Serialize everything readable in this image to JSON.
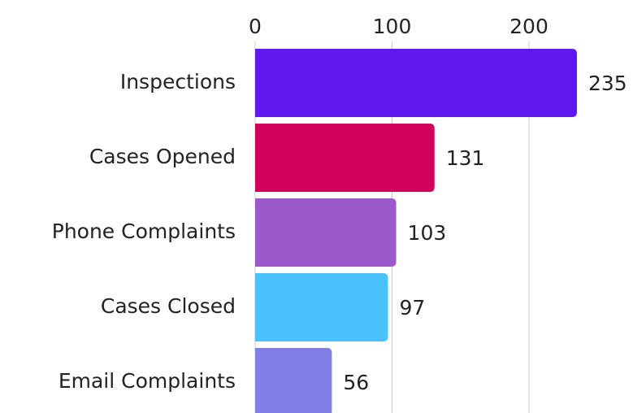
{
  "chart_data": {
    "type": "bar",
    "orientation": "horizontal",
    "categories": [
      "Inspections",
      "Cases Opened",
      "Phone Complaints",
      "Cases Closed",
      "Email Complaints"
    ],
    "values": [
      235,
      131,
      103,
      97,
      56
    ],
    "colors": [
      "#5f19ef",
      "#d1005a",
      "#9b59cc",
      "#4ac3fd",
      "#7f7fe6"
    ],
    "xlim": [
      0,
      275
    ],
    "xticks": [
      0,
      100,
      200
    ],
    "grid": true
  }
}
